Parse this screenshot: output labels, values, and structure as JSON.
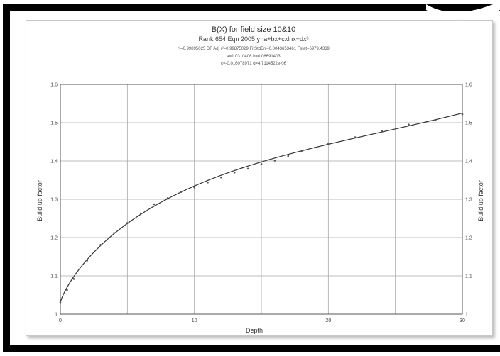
{
  "chart_data": {
    "type": "scatter",
    "title": "B(X) for field size 10&10",
    "subtitle": "Rank 654  Eqn 2005  y=a+bx+cxlnx+dx³",
    "stats_line1": "r²=0.99895025  DF Adj r²=0.99875029  FitStdErr=0.0043653461  Fstat=6979.4339",
    "stats_line2": "a=1.0310406 b=0.06691403",
    "stats_line3": "c=-0.016078971 d=4.7114522e-06",
    "xlabel": "Depth",
    "ylabel": "Build up factor",
    "ylabel_right": "Build up factor",
    "xlim": [
      0,
      30
    ],
    "ylim": [
      1,
      1.6
    ],
    "x_ticks": [
      "0",
      "10",
      "20",
      "30"
    ],
    "y_ticks": [
      "1",
      "1.1",
      "1.2",
      "1.3",
      "1.4",
      "1.5",
      "1.6"
    ],
    "fit": {
      "a": 1.0310406,
      "b": 0.06691403,
      "c": -0.016078971,
      "d": 4.7114522e-06
    },
    "points": {
      "x": [
        0,
        0.5,
        1,
        2,
        3,
        4,
        5,
        6,
        7,
        8,
        9,
        10,
        11,
        12,
        13,
        14,
        15,
        16,
        17,
        18,
        19,
        20,
        22,
        24,
        26,
        28,
        30
      ],
      "y": [
        1.031,
        1.063,
        1.092,
        1.14,
        1.181,
        1.212,
        1.238,
        1.263,
        1.287,
        1.303,
        1.319,
        1.331,
        1.344,
        1.357,
        1.37,
        1.38,
        1.392,
        1.401,
        1.413,
        1.425,
        1.435,
        1.445,
        1.462,
        1.478,
        1.495,
        1.507,
        1.522
      ]
    },
    "grid": true
  }
}
